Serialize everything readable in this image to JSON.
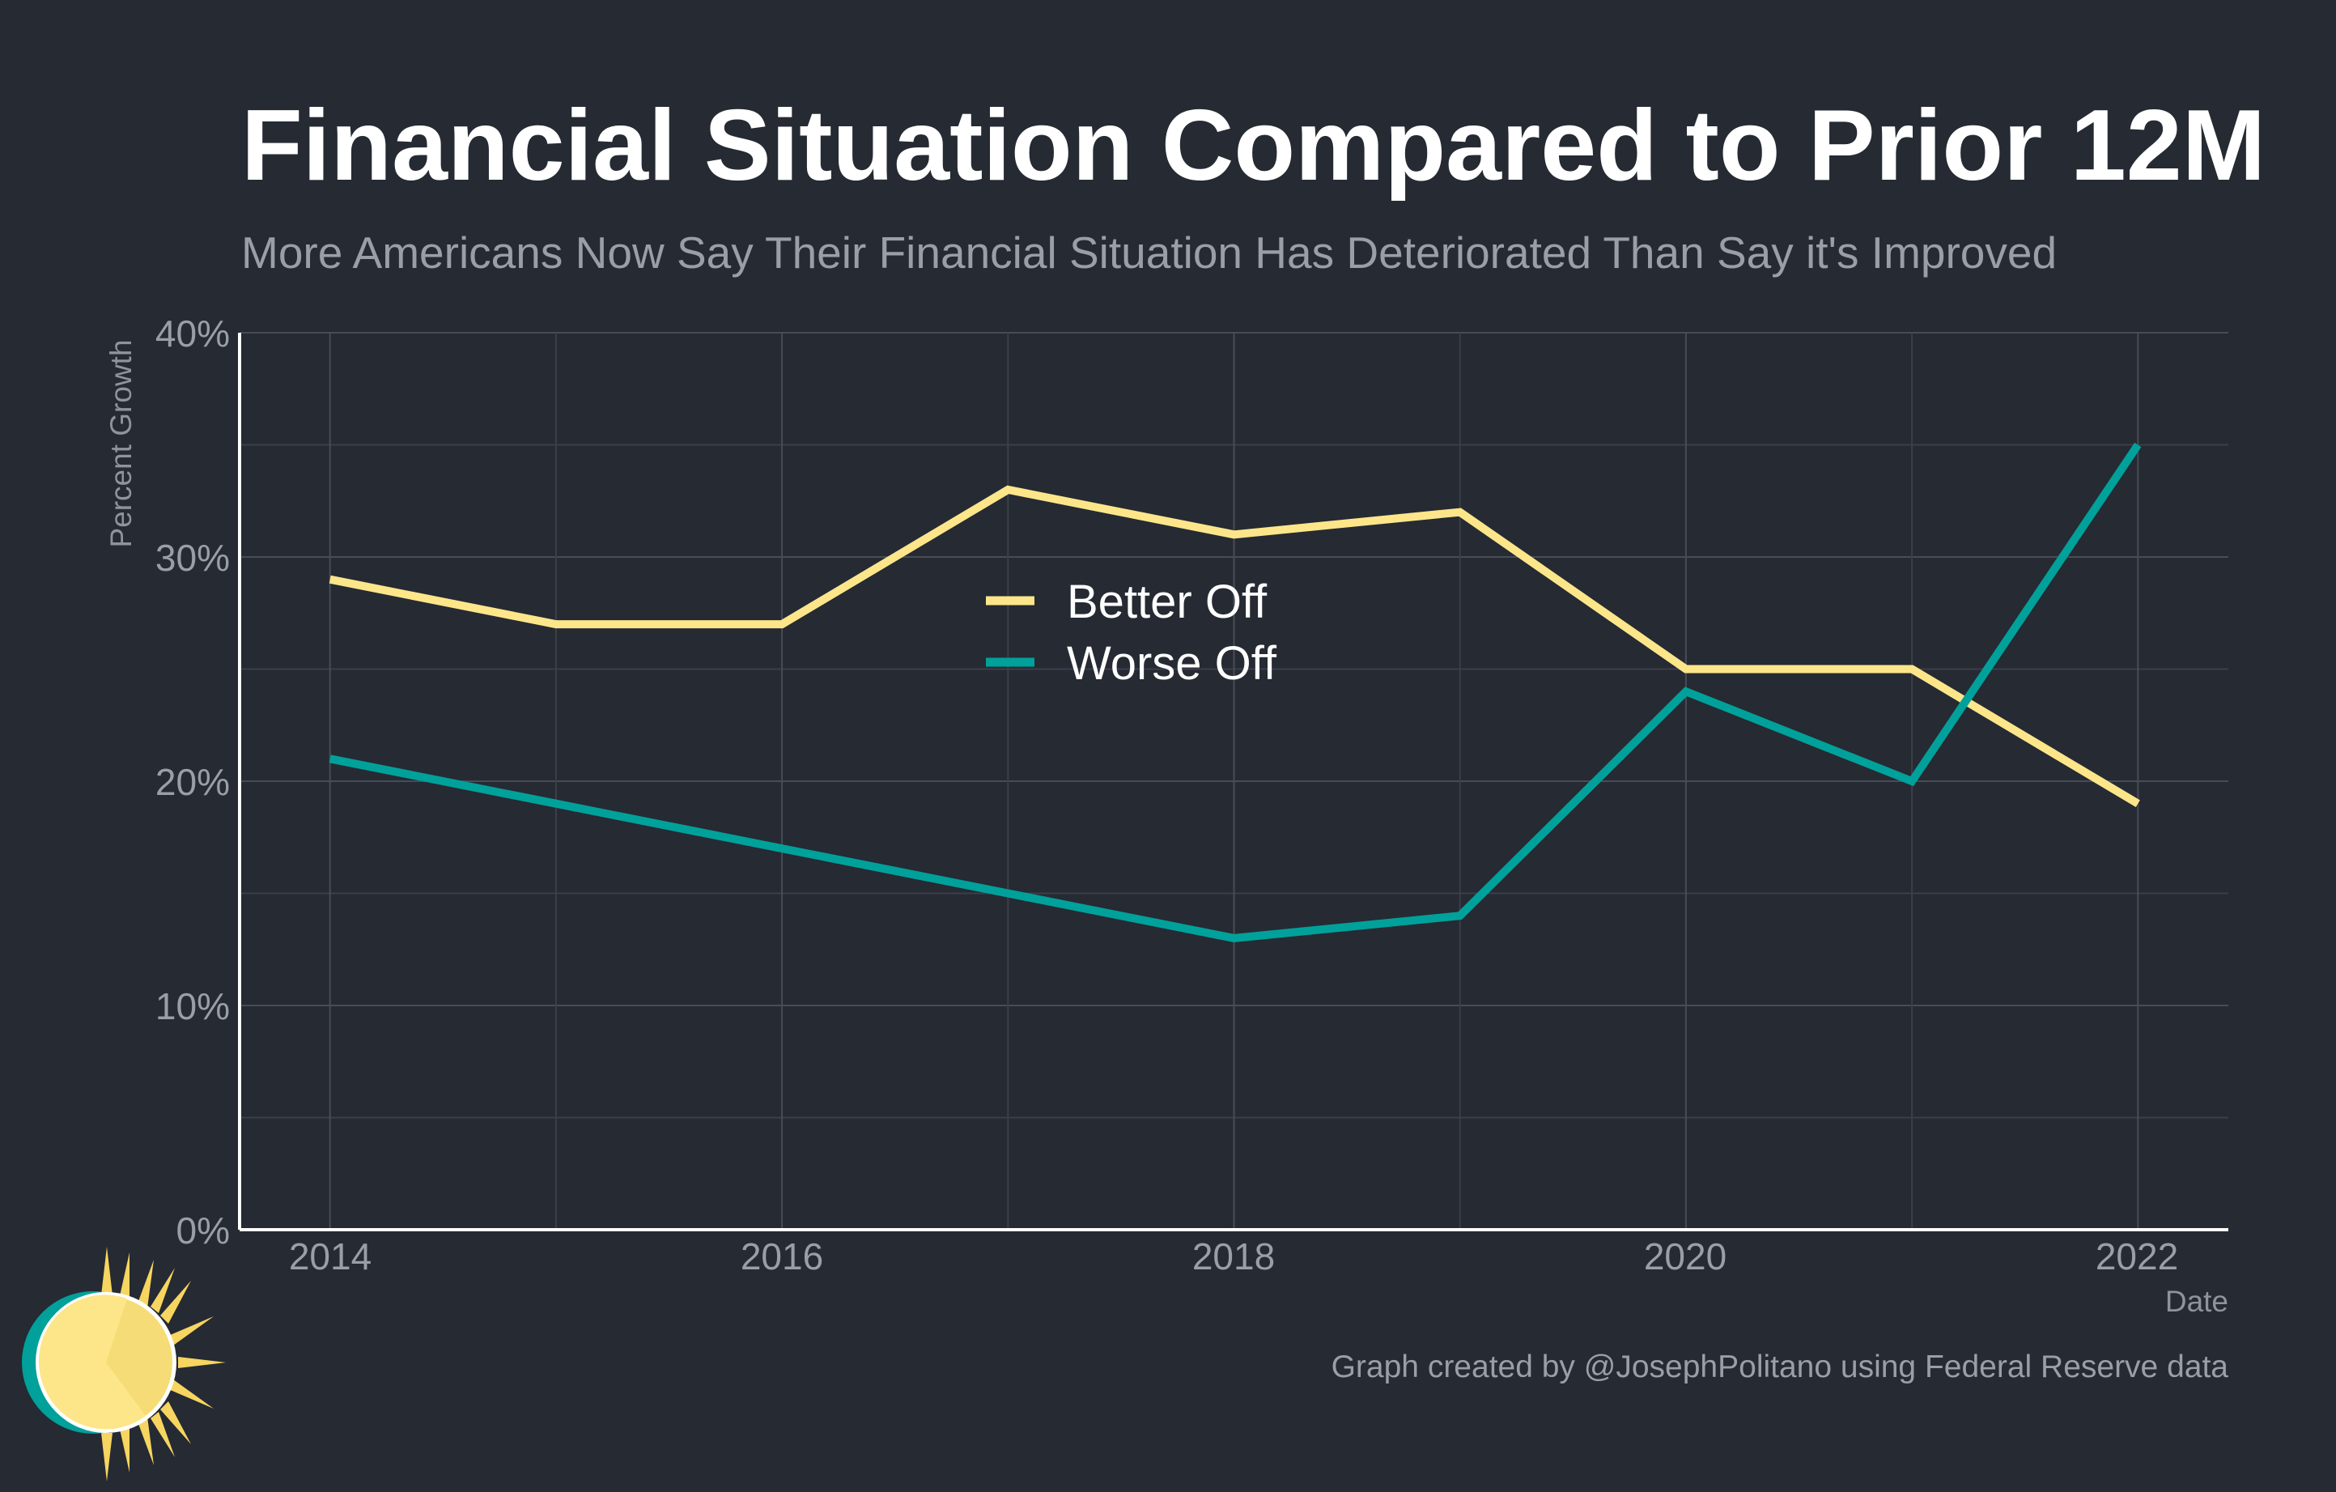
{
  "chart_data": {
    "type": "line",
    "title": "Financial Situation Compared to Prior 12M",
    "subtitle": "More Americans Now Say Their Financial Situation Has Deteriorated Than Say it's Improved",
    "xlabel": "Date",
    "ylabel": "Percent Growth",
    "x": [
      2014,
      2015,
      2016,
      2017,
      2018,
      2019,
      2020,
      2021,
      2022
    ],
    "x_tick_labels": [
      "2014",
      "2016",
      "2018",
      "2020",
      "2022"
    ],
    "xlim": [
      2013.6,
      2022.4
    ],
    "ylim": [
      0,
      40
    ],
    "y_tick_labels": [
      "0%",
      "10%",
      "20%",
      "30%",
      "40%"
    ],
    "grid": true,
    "legend_position": "top-center",
    "series": [
      {
        "name": "Better Off",
        "color": "#fde68a",
        "values": [
          29,
          27,
          27,
          33,
          31,
          32,
          25,
          25,
          19
        ]
      },
      {
        "name": "Worse Off",
        "color": "#00a19a",
        "values": [
          21,
          19,
          17,
          15,
          13,
          14,
          24,
          20,
          35
        ]
      }
    ],
    "caption": "Graph created by @JosephPolitano using Federal Reserve data",
    "logo": "sun-logo-icon"
  }
}
